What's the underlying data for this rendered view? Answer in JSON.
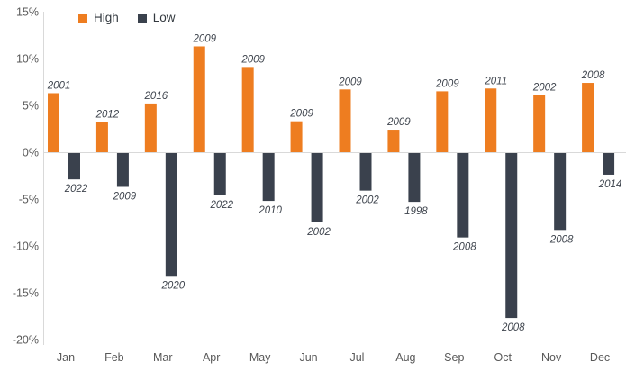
{
  "legend": {
    "high_label": "High",
    "low_label": "Low"
  },
  "colors": {
    "high": "#ee7d20",
    "low": "#3a414d",
    "axis_line": "#d9d9d9",
    "tick_text": "#595959",
    "annotation_text": "#3f454e"
  },
  "y_axis": {
    "tick_labels": [
      "15%",
      "10%",
      "5%",
      "0%",
      "-5%",
      "-10%",
      "-15%",
      "-20%"
    ],
    "tick_values": [
      15,
      10,
      5,
      0,
      -5,
      -10,
      -15,
      -20
    ]
  },
  "chart_data": {
    "type": "bar",
    "title": "",
    "xlabel": "",
    "ylabel": "",
    "ylim": [
      -20,
      15
    ],
    "grid": false,
    "legend_position": "top-left",
    "value_format": "percent",
    "categories": [
      "Jan",
      "Feb",
      "Mar",
      "Apr",
      "May",
      "Jun",
      "Jul",
      "Aug",
      "Sep",
      "Oct",
      "Nov",
      "Dec"
    ],
    "series": [
      {
        "name": "High",
        "color": "#ee7d20",
        "values": [
          6.3,
          3.2,
          5.2,
          11.3,
          9.1,
          3.3,
          6.7,
          2.4,
          6.5,
          6.8,
          6.1,
          7.4
        ],
        "point_labels": [
          "2001",
          "2012",
          "2016",
          "2009",
          "2009",
          "2009",
          "2009",
          "2009",
          "2009",
          "2011",
          "2002",
          "2008"
        ]
      },
      {
        "name": "Low",
        "color": "#3a414d",
        "values": [
          -2.9,
          -3.7,
          -13.2,
          -4.6,
          -5.2,
          -7.5,
          -4.1,
          -5.3,
          -9.1,
          -17.7,
          -8.3,
          -2.4
        ],
        "point_labels": [
          "2022",
          "2009",
          "2020",
          "2022",
          "2010",
          "2002",
          "2002",
          "1998",
          "2008",
          "2008",
          "2008",
          "2014"
        ]
      }
    ]
  }
}
